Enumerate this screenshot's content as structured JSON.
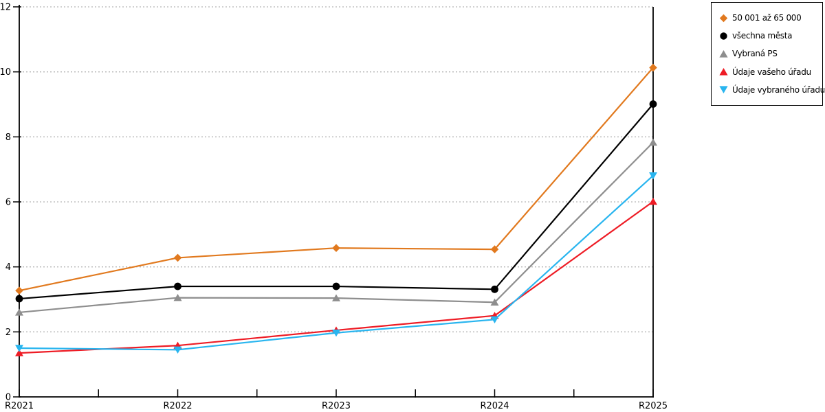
{
  "chart_data": {
    "type": "line",
    "categories": [
      "R2021",
      "R2022",
      "R2023",
      "R2024",
      "R2025"
    ],
    "series": [
      {
        "name": "50 001 až 65 000",
        "color": "#E1791E",
        "marker": "diamond",
        "values": [
          3.27,
          4.28,
          4.58,
          4.54,
          10.13
        ]
      },
      {
        "name": "všechna města",
        "color": "#000000",
        "marker": "circle",
        "values": [
          3.02,
          3.4,
          3.4,
          3.31,
          9.01
        ]
      },
      {
        "name": "Vybraná PS",
        "color": "#8E8E8E",
        "marker": "triangle-up",
        "values": [
          2.6,
          3.05,
          3.04,
          2.91,
          7.83
        ]
      },
      {
        "name": "Údaje vašeho úřadu",
        "color": "#EE1C25",
        "marker": "triangle-up",
        "values": [
          1.35,
          1.58,
          2.05,
          2.5,
          6.01
        ]
      },
      {
        "name": "Údaje vybraného úřadu",
        "color": "#29B5EF",
        "marker": "triangle-down",
        "values": [
          1.5,
          1.45,
          1.97,
          2.38,
          6.81
        ]
      }
    ],
    "title": "",
    "xlabel": "",
    "ylabel": "",
    "ylim": [
      0,
      12
    ],
    "ytick_step": 2,
    "yticks": [
      0,
      2,
      4,
      6,
      8,
      10,
      12
    ],
    "grid": "horizontal-dotted",
    "grid_color": "#b3b3b3",
    "axis_color": "#000000",
    "background": "#ffffff",
    "legend_position": "top-right"
  }
}
